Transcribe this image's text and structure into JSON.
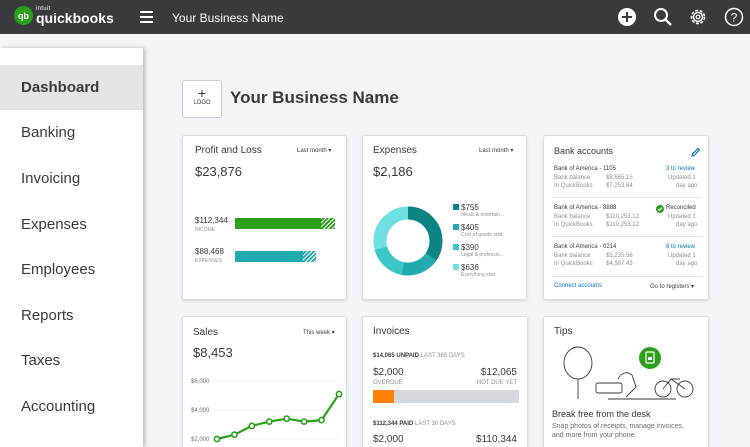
{
  "brand": {
    "intuit": "intuit",
    "name": "quickbooks",
    "mark": "qb"
  },
  "header": {
    "business_name": "Your Business Name"
  },
  "sidebar": {
    "items": [
      {
        "label": "Dashboard"
      },
      {
        "label": "Banking"
      },
      {
        "label": "Invoicing"
      },
      {
        "label": "Expenses"
      },
      {
        "label": "Employees"
      },
      {
        "label": "Reports"
      },
      {
        "label": "Taxes"
      },
      {
        "label": "Accounting"
      }
    ]
  },
  "company": {
    "logo_plus": "+",
    "logo_label": "LOGO",
    "name": "Your Business Name"
  },
  "profit_loss": {
    "title": "Profit and Loss",
    "range": "Last month",
    "total": "$23,876",
    "income_amount": "$112,344",
    "income_label": "INCOME",
    "expenses_amount": "$88,468",
    "expenses_label": "EXPENSES"
  },
  "expenses": {
    "title": "Expenses",
    "range": "Last month",
    "total": "$2,186",
    "items": [
      {
        "amount": "$755",
        "label": "Meals & entertain...",
        "color": "#0d8484",
        "value": 755
      },
      {
        "amount": "$405",
        "label": "Cost of goods sold",
        "color": "#21abb1",
        "value": 405
      },
      {
        "amount": "$390",
        "label": "Legal & professio...",
        "color": "#3bc7c8",
        "value": 390
      },
      {
        "amount": "$636",
        "label": "Everything else",
        "color": "#6ee0e1",
        "value": 636
      }
    ]
  },
  "bank": {
    "title": "Bank accounts",
    "accounts": [
      {
        "name": "Bank of America - 1105",
        "status": "3 to review",
        "bank_label": "Bank balance",
        "bank_value": "$8,665.15",
        "qb_label": "In QuickBooks",
        "qb_value": "$7,253.64",
        "updated1": "Updated 1",
        "updated2": "day ago"
      },
      {
        "name": "Bank of America - 8888",
        "status": "Reconciled",
        "bank_label": "Bank balance",
        "bank_value": "$110,253.12",
        "qb_label": "In QuickBooks",
        "qb_value": "$110,253.12",
        "updated1": "Updated 1",
        "updated2": "day ago"
      },
      {
        "name": "Bank of America - 0214",
        "status": "8 to review",
        "bank_label": "Bank balance",
        "bank_value": "$5,235.56",
        "qb_label": "In QuickBooks",
        "qb_value": "$4,987.43",
        "updated1": "Updated 1",
        "updated2": "day ago"
      }
    ],
    "connect": "Connect accounts",
    "registers": "Go to registers"
  },
  "sales": {
    "title": "Sales",
    "range": "This week",
    "total": "$8,453",
    "chart_data": {
      "type": "line",
      "x": [
        1,
        2,
        3,
        4,
        5,
        6,
        7,
        8
      ],
      "values": [
        2000,
        2300,
        2900,
        3200,
        3400,
        3200,
        3300,
        5100
      ],
      "ytick_labels": [
        "$6,000",
        "$4,000",
        "$2,000"
      ],
      "ylim": [
        2000,
        6000
      ],
      "color": "#2ca01c"
    }
  },
  "invoices": {
    "title": "Invoices",
    "unpaid_amount": "$14,065",
    "unpaid_label": "UNPAID",
    "unpaid_period": "LAST 365 DAYS",
    "overdue_amount": "$2,000",
    "overdue_label": "OVERDUE",
    "notdue_amount": "$12,065",
    "notdue_label": "NOT DUE YET",
    "overdue_fraction": 0.142,
    "paid_amount": "$112,344",
    "paid_label": "PAID",
    "paid_period": "LAST 30 DAYS",
    "bottom_left": "$2,000",
    "bottom_right": "$110,344"
  },
  "tips": {
    "title": "Tips",
    "headline": "Break free from the desk",
    "line1": "Snap photos of receipts, manage invoices,",
    "line2": "and more from your phone."
  }
}
